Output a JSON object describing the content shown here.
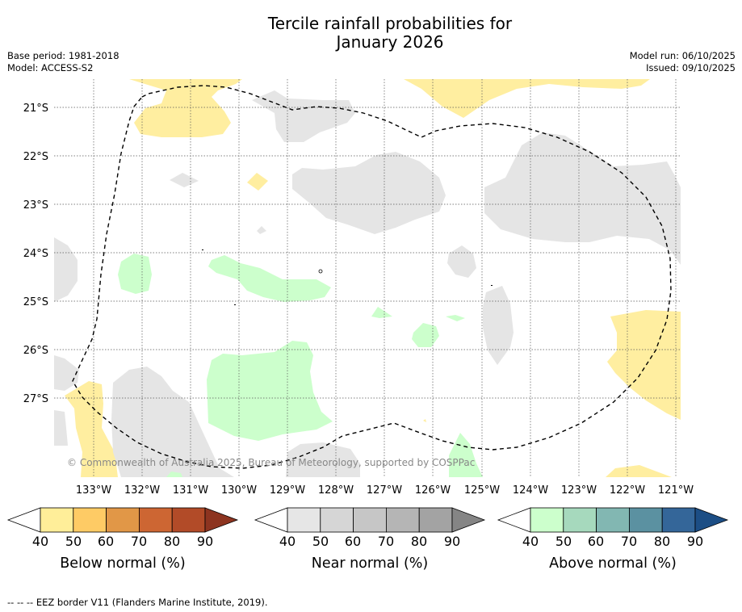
{
  "title": {
    "line1": "Tercile rainfall probabilities for",
    "line2": "January 2026"
  },
  "meta": {
    "base_period": "Base period: 1981-2018",
    "model": "Model: ACCESS-S2",
    "model_run": "Model run: 06/10/2025",
    "issued": "Issued: 09/10/2025"
  },
  "map": {
    "lat_labels": [
      "21°S",
      "22°S",
      "23°S",
      "24°S",
      "25°S",
      "26°S",
      "27°S"
    ],
    "lon_labels": [
      "133°W",
      "132°W",
      "131°W",
      "130°W",
      "129°W",
      "128°W",
      "127°W",
      "126°W",
      "125°W",
      "124°W",
      "123°W",
      "122°W",
      "121°W"
    ],
    "copyright": "© Commonwealth of Australia 2025, Bureau of Meteorology, supported by COSPPac",
    "colors": {
      "below": "#ffeea0",
      "near": "#e5e5e5",
      "above": "#ccffcc"
    }
  },
  "colorbars": [
    {
      "label": "Below normal (%)",
      "ticks": [
        "40",
        "50",
        "60",
        "70",
        "80",
        "90"
      ],
      "colors": [
        "#ffee99",
        "#fecb65",
        "#e19747",
        "#cd6633",
        "#b24b28",
        "#8d3420"
      ]
    },
    {
      "label": "Near normal (%)",
      "ticks": [
        "40",
        "50",
        "60",
        "70",
        "80",
        "90"
      ],
      "colors": [
        "#e6e6e6",
        "#d6d6d6",
        "#c6c6c6",
        "#b5b5b5",
        "#a3a3a3",
        "#858585"
      ]
    },
    {
      "label": "Above normal (%)",
      "ticks": [
        "40",
        "50",
        "60",
        "70",
        "80",
        "90"
      ],
      "colors": [
        "#ccffcc",
        "#a6d9bd",
        "#82b7b2",
        "#5b91a1",
        "#346699",
        "#1c4e85"
      ]
    }
  ],
  "footnote": "--  --  -- EEZ border V11 (Flanders Marine Institute, 2019)."
}
